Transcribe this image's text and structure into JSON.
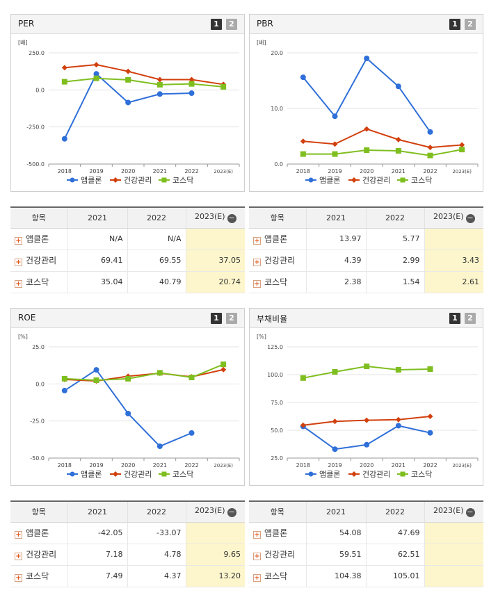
{
  "colors": {
    "series": [
      "#2f6fd9",
      "#d2400d",
      "#7fbe1f"
    ]
  },
  "pager": {
    "p1": "1",
    "p2": "2"
  },
  "table_headers": {
    "item": "항목",
    "c1": "2021",
    "c2": "2022",
    "c3": "2023(E)",
    "collapse_icon": "minus-circle-icon",
    "expand_icon": "plus-box-icon",
    "minus": "−",
    "plus": "+"
  },
  "chart_data": [
    {
      "type": "line",
      "title": "PER",
      "ylabel": "[배]",
      "categories": [
        "2018",
        "2019",
        "2020",
        "2021",
        "2022",
        "2023(E)"
      ],
      "ylim": [
        -500,
        250
      ],
      "yticks": [
        250,
        0,
        -250,
        -500
      ],
      "ytick_labels": [
        "250.0",
        "0.0",
        "-250.0",
        "-500.0"
      ],
      "series": [
        {
          "name": "앱클론",
          "marker": "circle",
          "values": [
            -330,
            108,
            -85,
            -28,
            -22,
            null
          ]
        },
        {
          "name": "건강관리",
          "marker": "diamond",
          "values": [
            150,
            170,
            125,
            69.41,
            69.55,
            37.05
          ]
        },
        {
          "name": "코스닥",
          "marker": "square",
          "values": [
            55,
            78,
            68,
            35.04,
            40.79,
            20.74
          ]
        }
      ]
    },
    {
      "type": "line",
      "title": "PBR",
      "ylabel": "[배]",
      "categories": [
        "2018",
        "2019",
        "2020",
        "2021",
        "2022",
        "2023(E)"
      ],
      "ylim": [
        0,
        20
      ],
      "yticks": [
        20,
        10,
        0
      ],
      "ytick_labels": [
        "20.0",
        "10.0",
        "0.0"
      ],
      "series": [
        {
          "name": "앱클론",
          "marker": "circle",
          "values": [
            15.6,
            8.6,
            19.0,
            13.97,
            5.77,
            null
          ]
        },
        {
          "name": "건강관리",
          "marker": "diamond",
          "values": [
            4.1,
            3.6,
            6.3,
            4.39,
            2.99,
            3.43
          ]
        },
        {
          "name": "코스닥",
          "marker": "square",
          "values": [
            1.8,
            1.8,
            2.5,
            2.38,
            1.54,
            2.61
          ]
        }
      ]
    },
    {
      "type": "line",
      "title": "ROE",
      "ylabel": "[%]",
      "categories": [
        "2018",
        "2019",
        "2020",
        "2021",
        "2022",
        "2023(E)"
      ],
      "ylim": [
        -50,
        25
      ],
      "yticks": [
        25,
        0,
        -25,
        -50
      ],
      "ytick_labels": [
        "25.0",
        "0.0",
        "-25.0",
        "-50.0"
      ],
      "series": [
        {
          "name": "앱클론",
          "marker": "circle",
          "values": [
            -4.5,
            9.5,
            -20,
            -42.05,
            -33.07,
            null
          ]
        },
        {
          "name": "건강관리",
          "marker": "diamond",
          "values": [
            3,
            2,
            5.2,
            7.18,
            4.78,
            9.65
          ]
        },
        {
          "name": "코스닥",
          "marker": "square",
          "values": [
            3.5,
            2.5,
            3.5,
            7.49,
            4.37,
            13.2
          ]
        }
      ]
    },
    {
      "type": "line",
      "title": "부채비율",
      "ylabel": "[%]",
      "categories": [
        "2018",
        "2019",
        "2020",
        "2021",
        "2022",
        "2023(E)"
      ],
      "ylim": [
        25,
        125
      ],
      "yticks": [
        125,
        100,
        75,
        50,
        25
      ],
      "ytick_labels": [
        "125.0",
        "100.0",
        "75.0",
        "50.0",
        "25.0"
      ],
      "series": [
        {
          "name": "앱클론",
          "marker": "circle",
          "values": [
            53.5,
            33,
            37,
            54.08,
            47.69,
            null
          ]
        },
        {
          "name": "건강관리",
          "marker": "diamond",
          "values": [
            54.5,
            58,
            59,
            59.51,
            62.51,
            null
          ]
        },
        {
          "name": "코스닥",
          "marker": "square",
          "values": [
            97,
            102.5,
            107.5,
            104.38,
            105.01,
            null
          ]
        }
      ]
    }
  ],
  "tables": [
    {
      "rows": [
        {
          "name": "앱클론",
          "v2021": "N/A",
          "v2022": "N/A",
          "v2023": ""
        },
        {
          "name": "건강관리",
          "v2021": "69.41",
          "v2022": "69.55",
          "v2023": "37.05"
        },
        {
          "name": "코스닥",
          "v2021": "35.04",
          "v2022": "40.79",
          "v2023": "20.74"
        }
      ]
    },
    {
      "rows": [
        {
          "name": "앱클론",
          "v2021": "13.97",
          "v2022": "5.77",
          "v2023": ""
        },
        {
          "name": "건강관리",
          "v2021": "4.39",
          "v2022": "2.99",
          "v2023": "3.43"
        },
        {
          "name": "코스닥",
          "v2021": "2.38",
          "v2022": "1.54",
          "v2023": "2.61"
        }
      ]
    },
    {
      "rows": [
        {
          "name": "앱클론",
          "v2021": "-42.05",
          "v2022": "-33.07",
          "v2023": ""
        },
        {
          "name": "건강관리",
          "v2021": "7.18",
          "v2022": "4.78",
          "v2023": "9.65"
        },
        {
          "name": "코스닥",
          "v2021": "7.49",
          "v2022": "4.37",
          "v2023": "13.20"
        }
      ]
    },
    {
      "rows": [
        {
          "name": "앱클론",
          "v2021": "54.08",
          "v2022": "47.69",
          "v2023": ""
        },
        {
          "name": "건강관리",
          "v2021": "59.51",
          "v2022": "62.51",
          "v2023": ""
        },
        {
          "name": "코스닥",
          "v2021": "104.38",
          "v2022": "105.01",
          "v2023": ""
        }
      ]
    }
  ]
}
